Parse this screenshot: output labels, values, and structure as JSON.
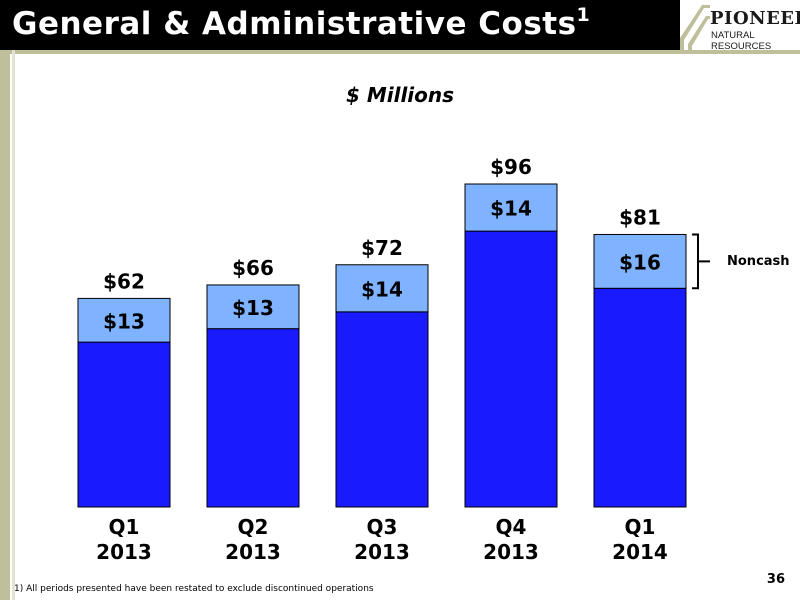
{
  "slide": {
    "title": "General & Administrative Costs",
    "title_superscript": "1",
    "logo_line1": "PIONEER",
    "logo_line2": "NATURAL RESOURCES",
    "subtitle": "$ Millions",
    "footnote": "1)   All periods presented have been restated to exclude discontinued operations",
    "page_number": "36",
    "bracket_label": "Noncash"
  },
  "colors": {
    "cash": "#1a1aff",
    "noncash": "#7fb2ff",
    "title_bar": "#000000",
    "accent_rule": "#bfbf9c"
  },
  "chart_data": {
    "type": "bar",
    "stacked": true,
    "categories": [
      [
        "Q1",
        "2013"
      ],
      [
        "Q2",
        "2013"
      ],
      [
        "Q3",
        "2013"
      ],
      [
        "Q4",
        "2013"
      ],
      [
        "Q1",
        "2014"
      ]
    ],
    "series": [
      {
        "key": "cash",
        "values": [
          49,
          53,
          58,
          82,
          65
        ]
      },
      {
        "name": "Noncash",
        "key": "noncash",
        "values": [
          13,
          13,
          14,
          14,
          16
        ]
      }
    ],
    "totals": [
      62,
      66,
      72,
      96,
      81
    ],
    "total_labels": [
      "$62",
      "$66",
      "$72",
      "$96",
      "$81"
    ],
    "segment_labels": [
      "$13",
      "$13",
      "$14",
      "$14",
      "$16"
    ],
    "ylim": [
      0,
      96
    ],
    "xlabel": "",
    "ylabel": "",
    "grid": false
  }
}
